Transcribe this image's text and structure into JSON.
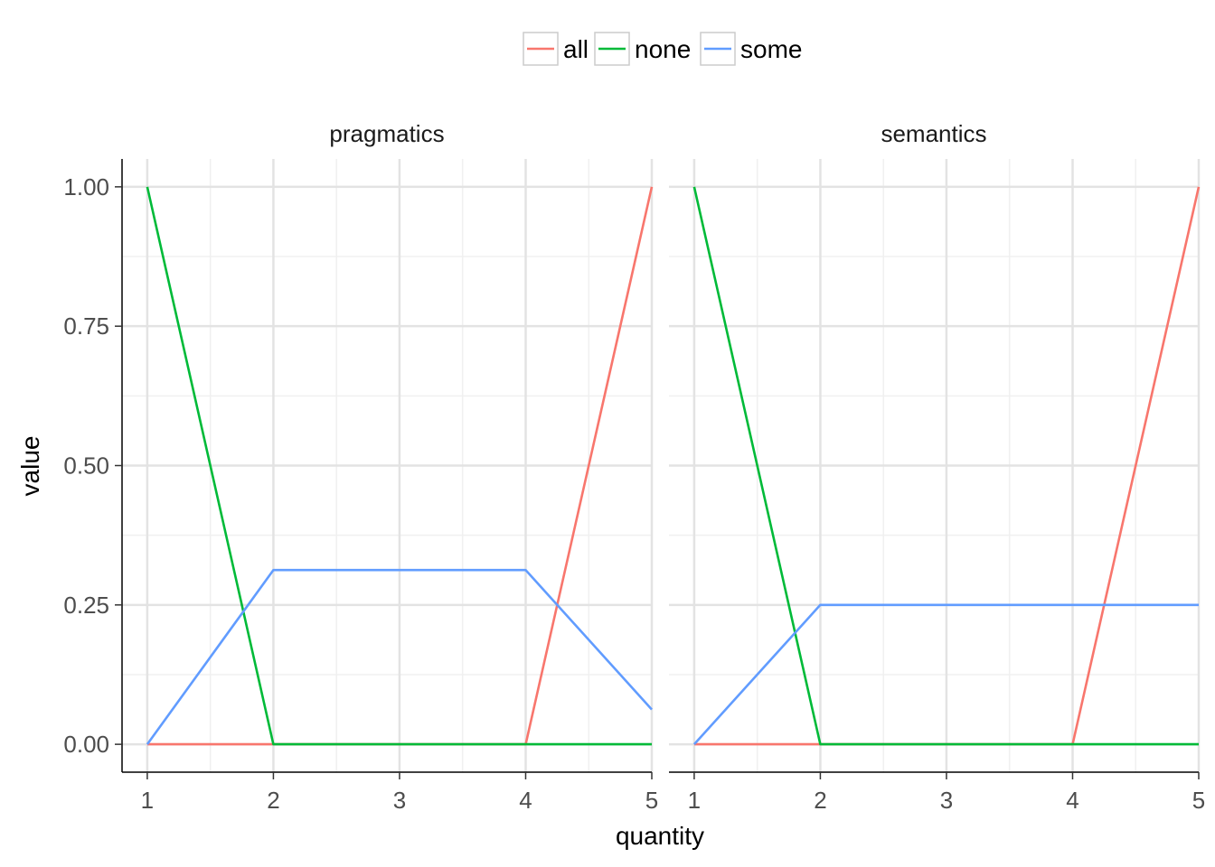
{
  "chart_data": {
    "type": "line",
    "xlabel": "quantity",
    "ylabel": "value",
    "x": [
      1,
      2,
      3,
      4,
      5
    ],
    "x_ticks": [
      "1",
      "2",
      "3",
      "4",
      "5"
    ],
    "y_ticks": [
      "0.00",
      "0.25",
      "0.50",
      "0.75",
      "1.00"
    ],
    "xlim": [
      0.8,
      5.0
    ],
    "ylim": [
      -0.05,
      1.05
    ],
    "grid": true,
    "legend_position": "top",
    "legend": [
      {
        "name": "all",
        "color": "#F8766D"
      },
      {
        "name": "none",
        "color": "#00BA38"
      },
      {
        "name": "some",
        "color": "#619CFF"
      }
    ],
    "panels": [
      {
        "label": "pragmatics",
        "series": [
          {
            "name": "all",
            "values": [
              0,
              0,
              0,
              0,
              1
            ]
          },
          {
            "name": "none",
            "values": [
              1,
              0,
              0,
              0,
              0
            ]
          },
          {
            "name": "some",
            "values": [
              0,
              0.3125,
              0.3125,
              0.3125,
              0.0625
            ]
          }
        ]
      },
      {
        "label": "semantics",
        "series": [
          {
            "name": "all",
            "values": [
              0,
              0,
              0,
              0,
              1
            ]
          },
          {
            "name": "none",
            "values": [
              1,
              0,
              0,
              0,
              0
            ]
          },
          {
            "name": "some",
            "values": [
              0,
              0.25,
              0.25,
              0.25,
              0.25
            ]
          }
        ]
      }
    ]
  }
}
